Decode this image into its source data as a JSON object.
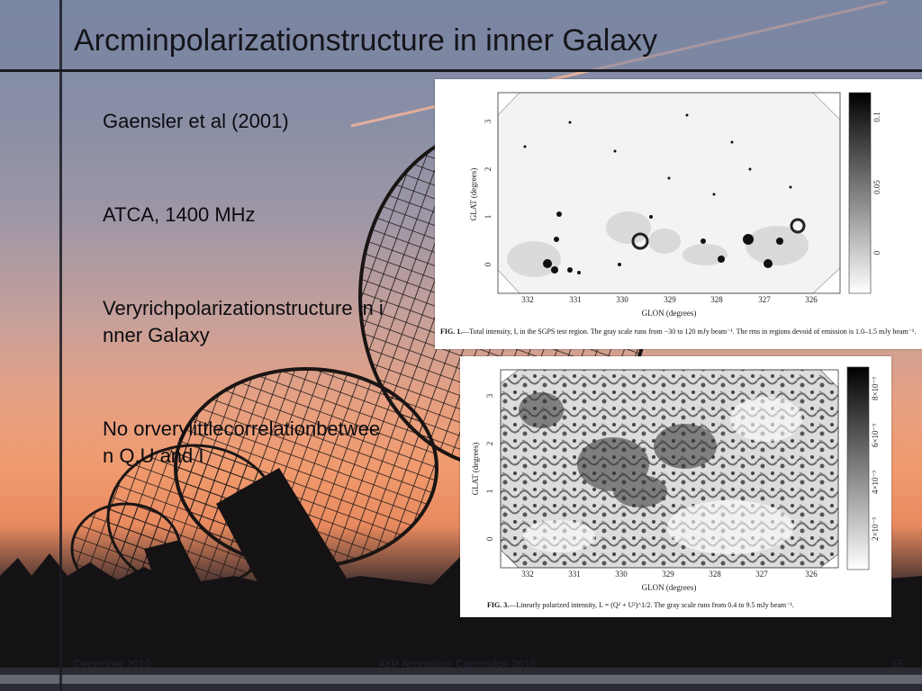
{
  "slide": {
    "title": "Arcminpolarizationstructure in inner Galaxy",
    "bullets": [
      "Gaensler et al (2001)",
      "ATCA, 1400 MHz",
      "Veryrichpolarizationstructure in inner Galaxy",
      "No orverylittlecorrelationbetween  Q,U  and I"
    ]
  },
  "footer": {
    "left": "December 2010",
    "center": "AYP Annotation Cambridge 2010",
    "right": "15"
  },
  "figure1": {
    "ylabel": "GLAT (degrees)",
    "xlabel": "GLON (degrees)",
    "xticks": [
      "332",
      "331",
      "330",
      "329",
      "328",
      "327",
      "326"
    ],
    "yticks": [
      "0",
      "1",
      "2",
      "3"
    ],
    "colorbar_ticks": [
      "0",
      "0.05",
      "0.1"
    ],
    "caption_fig": "FIG. 1.",
    "caption_text": "—Total intensity, I, in the SGPS test region. The gray scale runs from −30 to 120 mJy beam⁻¹. The rms in regions devoid of emission is 1.0–1.5 mJy beam⁻¹."
  },
  "figure2": {
    "ylabel": "GLAT (degrees)",
    "xlabel": "GLON (degrees)",
    "xticks": [
      "332",
      "331",
      "330",
      "329",
      "328",
      "327",
      "326"
    ],
    "yticks": [
      "0",
      "1",
      "2",
      "3"
    ],
    "colorbar_ticks": [
      "2×10⁻³",
      "4×10⁻³",
      "6×10⁻³",
      "8×10⁻³"
    ],
    "caption_fig": "FIG. 3.",
    "caption_text": "—Linearly polarized intensity, L = (Q² + U²)^1/2. The gray scale runs from 0.4 to 9.5 mJy beam⁻¹."
  }
}
